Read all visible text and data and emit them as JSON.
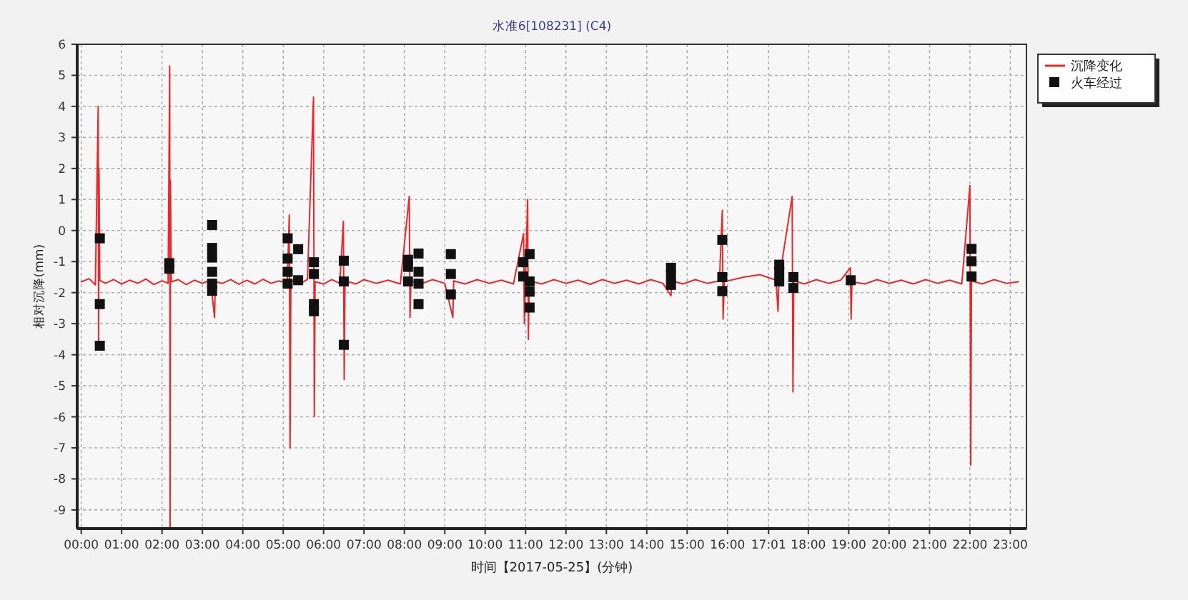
{
  "chart_data": {
    "type": "line",
    "title": "水准6[108231] (C4)",
    "xlabel": "时间【2017-05-25】(分钟)",
    "ylabel": "相对沉降(mm)",
    "xlim": [
      -0.1,
      23.4
    ],
    "ylim": [
      -9.6,
      6
    ],
    "xticks": [
      {
        "value": 0,
        "label": "00:00"
      },
      {
        "value": 1,
        "label": "01:00"
      },
      {
        "value": 2,
        "label": "02:00"
      },
      {
        "value": 3,
        "label": "03:00"
      },
      {
        "value": 4,
        "label": "04:00"
      },
      {
        "value": 5,
        "label": "05:00"
      },
      {
        "value": 6,
        "label": "06:00"
      },
      {
        "value": 7,
        "label": "07:00"
      },
      {
        "value": 8,
        "label": "08:00"
      },
      {
        "value": 9,
        "label": "09:00"
      },
      {
        "value": 10,
        "label": "10:00"
      },
      {
        "value": 11,
        "label": "11:00"
      },
      {
        "value": 12,
        "label": "12:00"
      },
      {
        "value": 13,
        "label": "13:00"
      },
      {
        "value": 14,
        "label": "14:00"
      },
      {
        "value": 15,
        "label": "15:00"
      },
      {
        "value": 16,
        "label": "16:00"
      },
      {
        "value": 17.0167,
        "label": "17:01"
      },
      {
        "value": 18,
        "label": "18:00"
      },
      {
        "value": 19,
        "label": "19:00"
      },
      {
        "value": 20,
        "label": "20:00"
      },
      {
        "value": 21,
        "label": "21:00"
      },
      {
        "value": 22,
        "label": "22:00"
      },
      {
        "value": 23,
        "label": "23:00"
      }
    ],
    "yticks": [
      -9,
      -8,
      -7,
      -6,
      -5,
      -4,
      -3,
      -2,
      -1,
      0,
      1,
      2,
      3,
      4,
      5,
      6
    ],
    "grid": true,
    "legend": "top right",
    "series": [
      {
        "name": "沉降变化",
        "color": "#e8282a",
        "line_style": "solid",
        "x": [
          0,
          0.2,
          0.35,
          0.42,
          0.43,
          0.44,
          0.46,
          0.6,
          0.8,
          1.0,
          1.2,
          1.4,
          1.6,
          1.8,
          2.0,
          2.15,
          2.19,
          2.2,
          2.21,
          2.23,
          2.4,
          2.6,
          2.8,
          3.0,
          3.2,
          3.3,
          3.32,
          3.5,
          3.7,
          3.9,
          4.1,
          4.3,
          4.5,
          4.7,
          4.9,
          5.1,
          5.15,
          5.17,
          5.19,
          5.4,
          5.6,
          5.75,
          5.77,
          5.79,
          6.0,
          6.2,
          6.4,
          6.49,
          6.51,
          6.53,
          6.8,
          7.0,
          7.3,
          7.6,
          7.9,
          8.12,
          8.14,
          8.16,
          8.4,
          8.7,
          9.0,
          9.2,
          9.22,
          9.5,
          9.8,
          10.1,
          10.4,
          10.7,
          10.95,
          10.97,
          11.05,
          11.07,
          11.09,
          11.4,
          11.7,
          12.0,
          12.3,
          12.6,
          12.9,
          13.2,
          13.5,
          13.8,
          14.1,
          14.4,
          14.6,
          14.62,
          14.9,
          15.2,
          15.5,
          15.8,
          15.87,
          15.89,
          15.92,
          16.4,
          16.8,
          17.2,
          17.25,
          17.27,
          17.6,
          17.62,
          17.64,
          17.9,
          18.2,
          18.5,
          18.8,
          19.04,
          19.06,
          19.08,
          19.4,
          19.7,
          20.0,
          20.3,
          20.6,
          20.9,
          21.2,
          21.5,
          21.8,
          22.0,
          22.02,
          22.04,
          22.3,
          22.6,
          22.9,
          23.2
        ],
        "values": [
          -1.65,
          -1.55,
          -1.75,
          4.0,
          -3.7,
          2.0,
          -1.6,
          -1.7,
          -1.58,
          -1.72,
          -1.6,
          -1.7,
          -1.56,
          -1.74,
          -1.62,
          -1.7,
          5.3,
          -9.6,
          1.6,
          -1.65,
          -1.58,
          -1.74,
          -1.6,
          -1.7,
          -1.6,
          -2.8,
          -1.65,
          -1.7,
          -1.58,
          -1.73,
          -1.6,
          -1.72,
          -1.57,
          -1.7,
          -1.62,
          -1.7,
          0.5,
          -7.0,
          -1.6,
          -1.72,
          -1.58,
          4.3,
          -6.0,
          -1.65,
          -1.72,
          -1.58,
          -1.7,
          0.3,
          -4.8,
          -1.62,
          -1.72,
          -1.58,
          -1.7,
          -1.6,
          -1.72,
          1.1,
          -2.8,
          -1.62,
          -1.72,
          -1.58,
          -1.7,
          -2.8,
          -1.62,
          -1.72,
          -1.58,
          -1.7,
          -1.6,
          -1.72,
          -0.1,
          -3.0,
          1.0,
          -3.5,
          -1.62,
          -1.72,
          -1.58,
          -1.7,
          -1.6,
          -1.73,
          -1.58,
          -1.7,
          -1.6,
          -1.72,
          -1.58,
          -1.7,
          -2.1,
          -1.62,
          -1.72,
          -1.58,
          -1.7,
          -1.62,
          0.65,
          -2.85,
          -1.65,
          -1.5,
          -1.42,
          -1.6,
          -2.6,
          -1.65,
          1.1,
          -5.2,
          -1.62,
          -1.72,
          -1.58,
          -1.7,
          -1.6,
          -1.2,
          -2.85,
          -1.65,
          -1.72,
          -1.58,
          -1.7,
          -1.6,
          -1.72,
          -1.58,
          -1.7,
          -1.6,
          -1.72,
          1.45,
          -7.55,
          -1.62,
          -1.72,
          -1.58,
          -1.7,
          -1.65
        ]
      },
      {
        "name": "火车经过",
        "type": "scatter",
        "color": "#111111",
        "marker": "square",
        "x": [
          0.46,
          0.46,
          0.46,
          2.18,
          2.18,
          3.24,
          3.24,
          3.24,
          3.24,
          3.24,
          3.24,
          5.11,
          5.11,
          5.11,
          5.11,
          5.37,
          5.37,
          5.76,
          5.76,
          5.76,
          5.76,
          6.5,
          6.5,
          6.5,
          8.09,
          8.09,
          8.09,
          8.35,
          8.35,
          8.35,
          8.35,
          9.15,
          9.15,
          9.15,
          10.94,
          10.94,
          11.1,
          11.1,
          11.1,
          11.1,
          14.6,
          14.6,
          14.6,
          15.87,
          15.87,
          15.87,
          17.28,
          17.28,
          17.28,
          17.63,
          17.63,
          19.05,
          22.04,
          22.04,
          22.04
        ],
        "values": [
          -0.25,
          -2.37,
          -3.71,
          -1.05,
          -1.23,
          0.18,
          -0.56,
          -0.87,
          -1.33,
          -1.71,
          -1.94,
          -0.25,
          -0.9,
          -1.33,
          -1.71,
          -0.6,
          -1.6,
          -1.02,
          -1.4,
          -2.37,
          -2.6,
          -0.97,
          -1.64,
          -3.68,
          -0.94,
          -1.17,
          -1.64,
          -0.74,
          -1.33,
          -1.71,
          -2.37,
          -0.76,
          -1.4,
          -2.06,
          -1.02,
          -1.48,
          -0.76,
          -1.64,
          -1.97,
          -2.48,
          -1.2,
          -1.45,
          -1.75,
          -0.3,
          -1.5,
          -1.95,
          -1.1,
          -1.33,
          -1.64,
          -1.5,
          -1.85,
          -1.6,
          -0.59,
          -0.99,
          -1.48
        ]
      }
    ]
  }
}
